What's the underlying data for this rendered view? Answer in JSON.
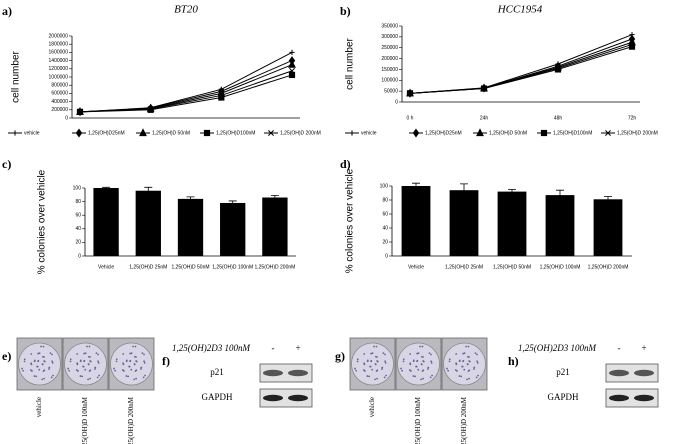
{
  "chart_data": [
    {
      "type": "line",
      "label": "a)",
      "title": "BT20",
      "y_label": "cell number",
      "categories": [
        null,
        null,
        null,
        null
      ],
      "series": [
        {
          "name": "vehicle",
          "color": "#000000",
          "marker": "plus",
          "values": [
            150000,
            250000,
            700000,
            1600000
          ]
        },
        {
          "name": "1,25(OH)D25nM",
          "color": "#000000",
          "marker": "diamond",
          "values": [
            150000,
            240000,
            650000,
            1400000
          ]
        },
        {
          "name": "1,25(OH)D 50nM",
          "color": "#000000",
          "marker": "triangle",
          "values": [
            150000,
            230000,
            600000,
            1300000
          ]
        },
        {
          "name": "1,25(OH)D100nM",
          "color": "#000000",
          "marker": "square",
          "values": [
            150000,
            200000,
            500000,
            1050000
          ]
        },
        {
          "name": "1,25(OH)D 200nM",
          "color": "#000000",
          "marker": "x",
          "values": [
            150000,
            220000,
            550000,
            1150000
          ]
        }
      ],
      "ylim": [
        0,
        2000000
      ],
      "yticks": [
        0,
        200000,
        400000,
        600000,
        800000,
        1000000,
        1200000,
        1400000,
        1600000,
        1800000,
        2000000
      ]
    },
    {
      "type": "line",
      "label": "b)",
      "title": "HCC1954",
      "y_label": "cell number",
      "categories": [
        "0 h",
        "24h",
        "48h",
        "72h"
      ],
      "series": [
        {
          "name": "vehicle",
          "color": "#000000",
          "marker": "plus",
          "values": [
            40000,
            65000,
            175000,
            310000
          ]
        },
        {
          "name": "1,25(OH)D25nM",
          "color": "#000000",
          "marker": "diamond",
          "values": [
            40000,
            64000,
            165000,
            290000
          ]
        },
        {
          "name": "1,25(OH)D 50nM",
          "color": "#000000",
          "marker": "triangle",
          "values": [
            40000,
            63000,
            160000,
            275000
          ]
        },
        {
          "name": "1,25(OH)D100nM",
          "color": "#000000",
          "marker": "square",
          "values": [
            40000,
            62000,
            150000,
            255000
          ]
        },
        {
          "name": "1,25(OH)D 200nM",
          "color": "#000000",
          "marker": "x",
          "values": [
            40000,
            63000,
            155000,
            265000
          ]
        }
      ],
      "ylim": [
        0,
        350000
      ],
      "yticks": [
        0,
        50000,
        100000,
        150000,
        200000,
        250000,
        300000,
        350000
      ]
    },
    {
      "type": "bar",
      "label": "c)",
      "y_label": "% colonies over vehicle",
      "color": "#000000",
      "categories": [
        "Vehicle",
        "1,25(OH)D 25nM",
        "1,25(OH)D 50nM",
        "1,25(OH)D 100nM",
        "1,25(OH)D 200nM"
      ],
      "values": [
        100,
        96,
        84,
        78,
        86
      ],
      "errors": [
        1,
        5,
        3,
        3,
        3
      ],
      "ylim": [
        0,
        100
      ],
      "yticks": [
        0,
        20,
        40,
        60,
        80,
        100
      ]
    },
    {
      "type": "bar",
      "label": "d)",
      "y_label": "% colonies over vehicle",
      "color": "#000000",
      "categories": [
        "Vehicle",
        "1,25(OH)D 25nM",
        "1,25(OH)D 50nM",
        "1,25(OH)D 100nM",
        "1,25(OH)D 200nM"
      ],
      "values": [
        100,
        94,
        92,
        87,
        81
      ],
      "errors": [
        4,
        9,
        3,
        7,
        4
      ],
      "ylim": [
        0,
        100
      ],
      "yticks": [
        0,
        20,
        40,
        60,
        80,
        100
      ]
    }
  ],
  "panels": {
    "e": {
      "label": "e)",
      "captions": [
        "vehicle",
        "1,25(OH)D 100nM",
        "1,25(OH)D 200nM"
      ]
    },
    "f": {
      "label": "f)",
      "treatment": "1,25(OH)2D3 100nM",
      "lanes": [
        "-",
        "+"
      ],
      "bands": [
        "p21",
        "GAPDH"
      ]
    },
    "g": {
      "label": "g)",
      "captions": [
        "vehicle",
        "1,25(OH)D 100nM",
        "1,25(OH)D 200nM"
      ]
    },
    "h": {
      "label": "h)",
      "treatment": "1,25(OH)2D3 100nM",
      "lanes": [
        "-",
        "+"
      ],
      "bands": [
        "p21",
        "GAPDH"
      ]
    }
  }
}
